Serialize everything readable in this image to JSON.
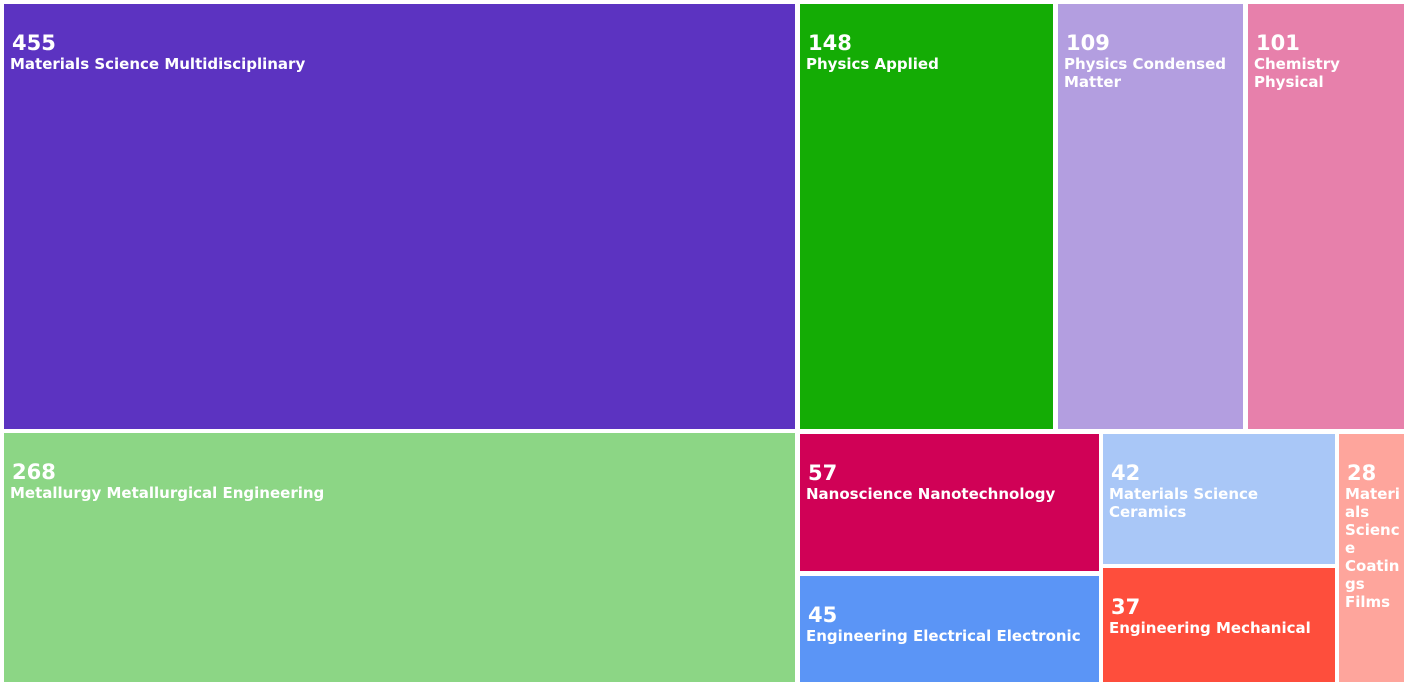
{
  "chart_data": {
    "type": "treemap",
    "title": "",
    "items": [
      {
        "label": "Materials Science Multidisciplinary",
        "value": 455,
        "color": "#5c33c1"
      },
      {
        "label": "Metallurgy Metallurgical Engineering",
        "value": 268,
        "color": "#8cd685"
      },
      {
        "label": "Physics Applied",
        "value": 148,
        "color": "#14ac05"
      },
      {
        "label": "Physics Condensed Matter",
        "value": 109,
        "color": "#b39ee0"
      },
      {
        "label": "Chemistry Physical",
        "value": 101,
        "color": "#e780ab"
      },
      {
        "label": "Nanoscience Nanotechnology",
        "value": 57,
        "color": "#d00156"
      },
      {
        "label": "Engineering Electrical Electronic",
        "value": 45,
        "color": "#5b95f6"
      },
      {
        "label": "Materials Science Ceramics",
        "value": 42,
        "color": "#a9c7f7"
      },
      {
        "label": "Engineering Mechanical",
        "value": 37,
        "color": "#fe4e3c"
      },
      {
        "label": "Materials Science Coatings Films",
        "value": 28,
        "color": "#fea59c"
      }
    ]
  }
}
